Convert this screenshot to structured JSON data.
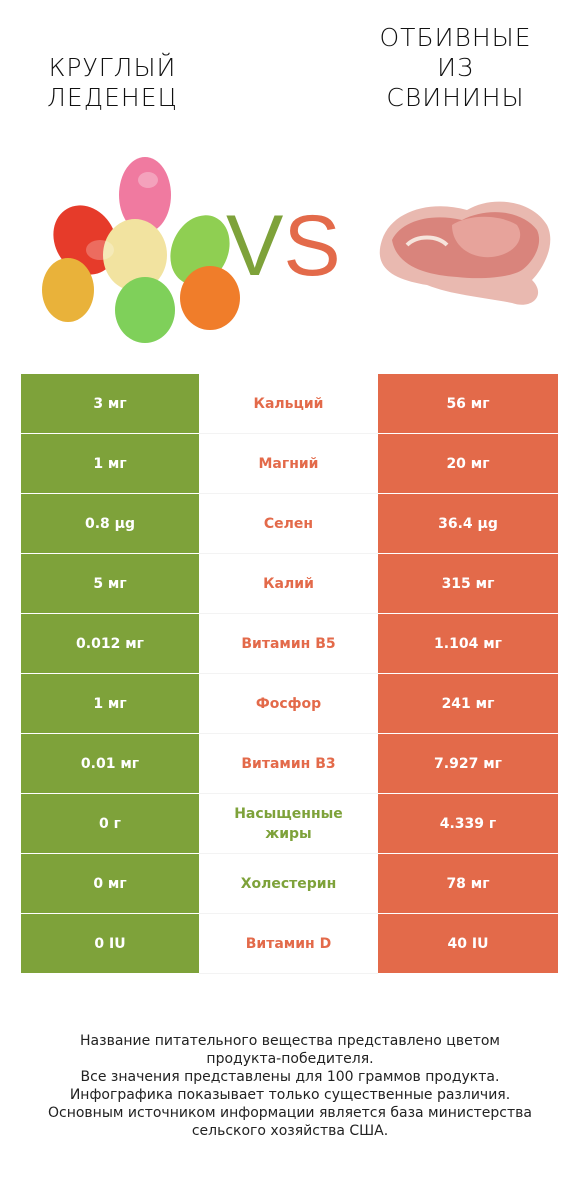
{
  "left_product": {
    "title": "КРУГЛЫЙ ЛЕДЕНЕЦ"
  },
  "right_product": {
    "title": "ОТБИВНЫЕ ИЗ СВИНИНЫ"
  },
  "vs": {
    "v": "V",
    "s": "S"
  },
  "colors": {
    "left": "#7ea23a",
    "right": "#e36a4a"
  },
  "rows": [
    {
      "nutrient": "Кальций",
      "left": "3 мг",
      "right": "56 мг",
      "winner": "right"
    },
    {
      "nutrient": "Магний",
      "left": "1 мг",
      "right": "20 мг",
      "winner": "right"
    },
    {
      "nutrient": "Селен",
      "left": "0.8 µg",
      "right": "36.4 µg",
      "winner": "right"
    },
    {
      "nutrient": "Калий",
      "left": "5 мг",
      "right": "315 мг",
      "winner": "right"
    },
    {
      "nutrient": "Витамин B5",
      "left": "0.012 мг",
      "right": "1.104 мг",
      "winner": "right"
    },
    {
      "nutrient": "Фосфор",
      "left": "1 мг",
      "right": "241 мг",
      "winner": "right"
    },
    {
      "nutrient": "Витамин B3",
      "left": "0.01 мг",
      "right": "7.927 мг",
      "winner": "right"
    },
    {
      "nutrient": "Насыщенные жиры",
      "left": "0 г",
      "right": "4.339 г",
      "winner": "left"
    },
    {
      "nutrient": "Холестерин",
      "left": "0 мг",
      "right": "78 мг",
      "winner": "left"
    },
    {
      "nutrient": "Витамин D",
      "left": "0 IU",
      "right": "40 IU",
      "winner": "right"
    }
  ],
  "footer": [
    "Название питательного вещества представлено цветом",
    "продукта-победителя.",
    "Все значения представлены для 100 граммов продукта.",
    "Инфографика показывает только существенные различия.",
    "Основным источником информации является база министерства",
    "сельского хозяйства США."
  ]
}
